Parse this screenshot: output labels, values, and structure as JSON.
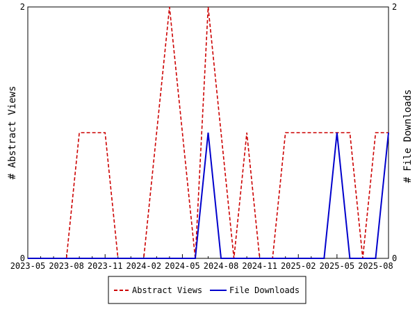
{
  "chart_data": {
    "type": "line",
    "x": [
      "2023-05",
      "2023-06",
      "2023-07",
      "2023-08",
      "2023-09",
      "2023-10",
      "2023-11",
      "2023-12",
      "2024-01",
      "2024-02",
      "2024-03",
      "2024-04",
      "2024-05",
      "2024-06",
      "2024-07",
      "2024-08",
      "2024-09",
      "2024-10",
      "2024-11",
      "2024-12",
      "2025-01",
      "2025-02",
      "2025-03",
      "2025-04",
      "2025-05",
      "2025-06",
      "2025-07",
      "2025-08",
      "2025-09"
    ],
    "x_tick_labels": [
      "2023-05",
      "2023-08",
      "2023-11",
      "2024-02",
      "2024-05",
      "2024-08",
      "2024-11",
      "2025-02",
      "2025-05",
      "2025-08"
    ],
    "ylabel_left": "# Abstract Views",
    "ylabel_right": "# File Downloads",
    "ylim_left": [
      0,
      2
    ],
    "ylim_right": [
      0,
      2
    ],
    "y_tick_labels_left": [
      "0",
      "2"
    ],
    "y_tick_labels_right": [
      "0",
      "2"
    ],
    "series": [
      {
        "name": "Abstract Views",
        "axis": "left",
        "color": "#cc0000",
        "dash": "dashed",
        "values": [
          0,
          0,
          0,
          0,
          1,
          1,
          1,
          0,
          0,
          0,
          1,
          2,
          1,
          0,
          2,
          1,
          0,
          1,
          0,
          0,
          1,
          1,
          1,
          1,
          1,
          1,
          0,
          1,
          1
        ]
      },
      {
        "name": "File Downloads",
        "axis": "right",
        "color": "#0000cc",
        "dash": "solid",
        "values": [
          0,
          0,
          0,
          0,
          0,
          0,
          0,
          0,
          0,
          0,
          0,
          0,
          0,
          0,
          1,
          0,
          0,
          0,
          0,
          0,
          0,
          0,
          0,
          0,
          1,
          0,
          0,
          0,
          1
        ]
      }
    ],
    "legend_position": "bottom-center",
    "grid": false
  }
}
